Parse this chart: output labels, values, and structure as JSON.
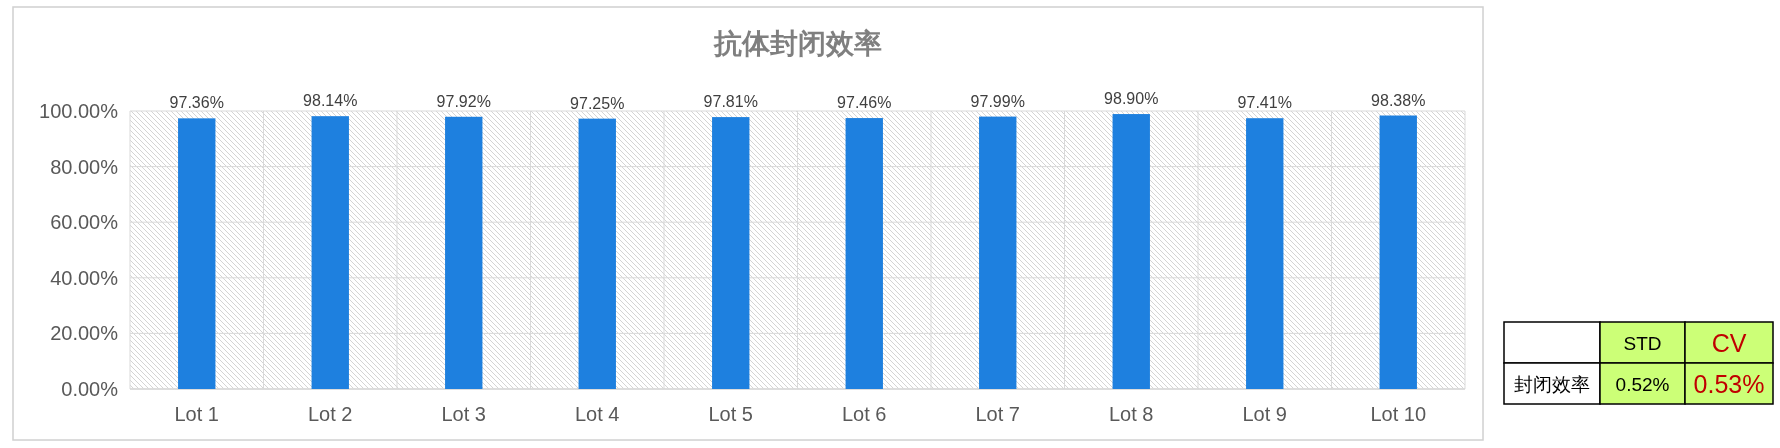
{
  "chart_data": [
    {
      "type": "bar",
      "title": "抗体封闭效率",
      "categories": [
        "Lot 1",
        "Lot 2",
        "Lot 3",
        "Lot 4",
        "Lot 5",
        "Lot 6",
        "Lot 7",
        "Lot 8",
        "Lot 9",
        "Lot 10"
      ],
      "values": [
        97.36,
        98.14,
        97.92,
        97.25,
        97.81,
        97.46,
        97.99,
        98.9,
        97.41,
        98.38
      ],
      "value_labels": [
        "97.36%",
        "98.14%",
        "97.92%",
        "97.25%",
        "97.81%",
        "97.46%",
        "97.99%",
        "98.90%",
        "97.41%",
        "98.38%"
      ],
      "color": "#1e80df",
      "ylim": [
        0,
        100
      ],
      "yticks": [
        {
          "value": 0,
          "label": "0.00%"
        },
        {
          "value": 20,
          "label": "20.00%"
        },
        {
          "value": 40,
          "label": "40.00%"
        },
        {
          "value": 60,
          "label": "60.00%"
        },
        {
          "value": 80,
          "label": "80.00%"
        },
        {
          "value": 100,
          "label": "100.00%"
        }
      ],
      "grid": true
    },
    {
      "type": "other",
      "annotations": [
        "STD",
        "CV",
        "封闭效率",
        "0.52%",
        "0.53%"
      ]
    }
  ]
}
